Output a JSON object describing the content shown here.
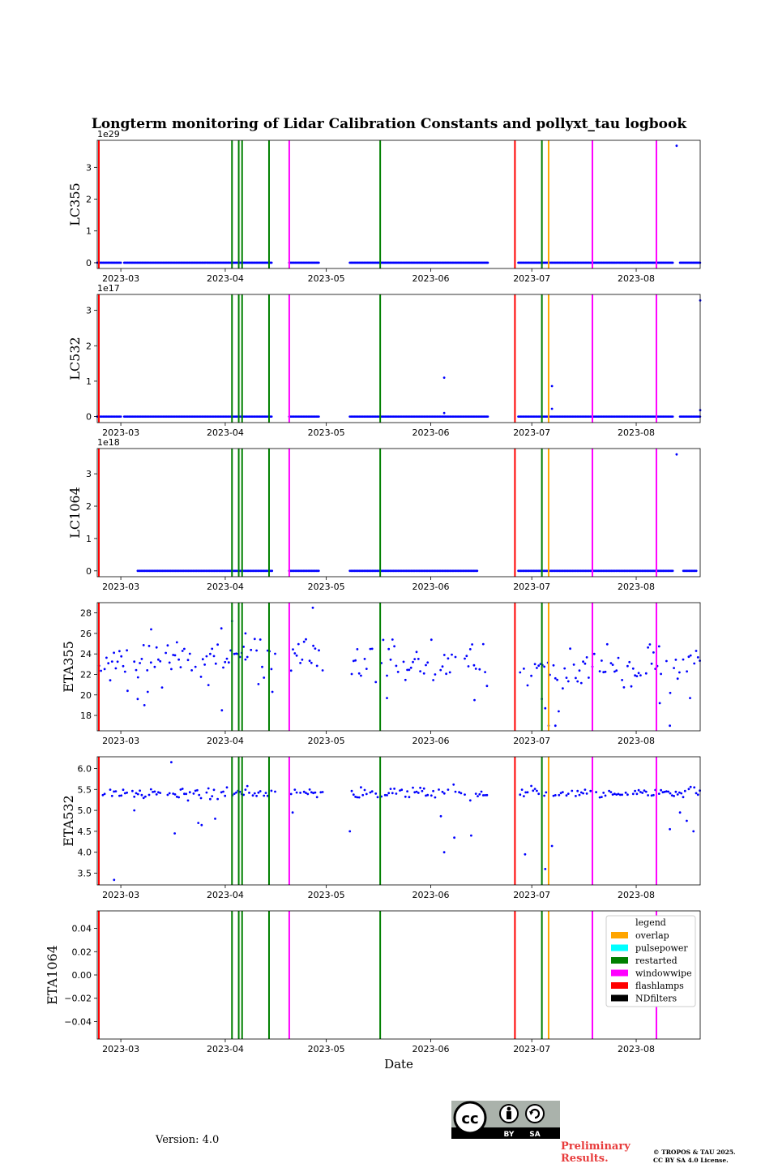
{
  "figure": {
    "title": "Longterm monitoring of Lidar Calibration Constants and pollyxt_tau logbook",
    "xlabel": "Date"
  },
  "chart_data": [
    {
      "type": "scatter",
      "ylabel": "LC355",
      "offset_text": "1e29",
      "yunit_scale": 1e+29,
      "ylim": [
        -0.18,
        3.85
      ],
      "yticks": [
        0,
        1,
        2,
        3
      ],
      "ytick_labels": [
        "0",
        "1",
        "2",
        "3"
      ],
      "xlim": [
        "2023-02-22",
        "2023-08-20"
      ],
      "xtick_labels": [
        "2023-03",
        "2023-04",
        "2023-05",
        "2023-06",
        "2023-07",
        "2023-08"
      ],
      "baseline_ranges": [
        [
          "2023-02-22",
          "2023-03-01"
        ],
        [
          "2023-03-02",
          "2023-04-15"
        ],
        [
          "2023-04-20",
          "2023-04-29"
        ],
        [
          "2023-05-08",
          "2023-06-18"
        ],
        [
          "2023-06-27",
          "2023-08-12"
        ],
        [
          "2023-08-14",
          "2023-08-20"
        ]
      ],
      "baseline_value": 0,
      "points": [
        [
          "2023-08-13",
          3.68
        ]
      ]
    },
    {
      "type": "scatter",
      "ylabel": "LC532",
      "offset_text": "1e17",
      "yunit_scale": 1e+17,
      "ylim": [
        -0.17,
        3.45
      ],
      "yticks": [
        0,
        1,
        2,
        3
      ],
      "ytick_labels": [
        "0",
        "1",
        "2",
        "3"
      ],
      "xlim": [
        "2023-02-22",
        "2023-08-20"
      ],
      "xtick_labels": [
        "2023-03",
        "2023-04",
        "2023-05",
        "2023-06",
        "2023-07",
        "2023-08"
      ],
      "baseline_ranges": [
        [
          "2023-02-22",
          "2023-03-01"
        ],
        [
          "2023-03-02",
          "2023-04-15"
        ],
        [
          "2023-04-20",
          "2023-04-29"
        ],
        [
          "2023-05-08",
          "2023-06-18"
        ],
        [
          "2023-06-27",
          "2023-08-12"
        ],
        [
          "2023-08-14",
          "2023-08-20"
        ]
      ],
      "baseline_value": 0,
      "points": [
        [
          "2023-06-05",
          1.1
        ],
        [
          "2023-07-07",
          0.86
        ],
        [
          "2023-07-07",
          0.22
        ],
        [
          "2023-08-20",
          3.28
        ],
        [
          "2023-08-20",
          0.18
        ],
        [
          "2023-06-05",
          0.1
        ]
      ]
    },
    {
      "type": "scatter",
      "ylabel": "LC1064",
      "offset_text": "1e18",
      "yunit_scale": 1e+18,
      "ylim": [
        -0.18,
        3.78
      ],
      "yticks": [
        0,
        1,
        2,
        3
      ],
      "ytick_labels": [
        "0",
        "1",
        "2",
        "3"
      ],
      "xlim": [
        "2023-02-22",
        "2023-08-20"
      ],
      "xtick_labels": [
        "2023-03",
        "2023-04",
        "2023-05",
        "2023-06",
        "2023-07",
        "2023-08"
      ],
      "baseline_ranges": [
        [
          "2023-03-06",
          "2023-04-15"
        ],
        [
          "2023-04-20",
          "2023-04-29"
        ],
        [
          "2023-05-08",
          "2023-06-15"
        ],
        [
          "2023-06-27",
          "2023-08-12"
        ],
        [
          "2023-08-15",
          "2023-08-19"
        ]
      ],
      "baseline_value": 0,
      "points": [
        [
          "2023-08-13",
          3.6
        ]
      ]
    },
    {
      "type": "scatter",
      "ylabel": "ETA355",
      "ylim": [
        16.5,
        29.0
      ],
      "yticks": [
        18,
        20,
        22,
        24,
        26,
        28
      ],
      "ytick_labels": [
        "18",
        "20",
        "22",
        "24",
        "26",
        "28"
      ],
      "xlim": [
        "2023-02-22",
        "2023-08-20"
      ],
      "xtick_labels": [
        "2023-03",
        "2023-04",
        "2023-05",
        "2023-06",
        "2023-07",
        "2023-08"
      ],
      "scatter_segments": [
        {
          "start": "2023-02-22",
          "end": "2023-04-16",
          "mean": 23.6,
          "spread": 1.5,
          "seed": 11
        },
        {
          "start": "2023-04-20",
          "end": "2023-04-30",
          "mean": 24.0,
          "spread": 1.2,
          "seed": 12
        },
        {
          "start": "2023-05-08",
          "end": "2023-06-18",
          "mean": 23.1,
          "spread": 1.3,
          "seed": 13
        },
        {
          "start": "2023-06-27",
          "end": "2023-08-20",
          "mean": 22.6,
          "spread": 1.5,
          "seed": 14
        }
      ],
      "outliers": [
        [
          "2023-03-03",
          20.4
        ],
        [
          "2023-03-06",
          19.6
        ],
        [
          "2023-03-08",
          19.0
        ],
        [
          "2023-03-09",
          20.3
        ],
        [
          "2023-03-10",
          26.4
        ],
        [
          "2023-03-31",
          18.5
        ],
        [
          "2023-04-03",
          27.2
        ],
        [
          "2023-04-07",
          26.0
        ],
        [
          "2023-04-15",
          20.3
        ],
        [
          "2023-04-27",
          28.5
        ],
        [
          "2023-05-19",
          19.7
        ],
        [
          "2023-06-14",
          19.5
        ],
        [
          "2023-07-04",
          19.6
        ],
        [
          "2023-07-05",
          18.7
        ],
        [
          "2023-07-06",
          17.0
        ],
        [
          "2023-07-08",
          17.0
        ],
        [
          "2023-07-09",
          18.4
        ],
        [
          "2023-08-08",
          19.2
        ],
        [
          "2023-08-11",
          17.0
        ],
        [
          "2023-08-17",
          19.7
        ]
      ]
    },
    {
      "type": "scatter",
      "ylabel": "ETA532",
      "ylim": [
        3.22,
        6.28
      ],
      "yticks": [
        3.5,
        4.0,
        4.5,
        5.0,
        5.5,
        6.0
      ],
      "ytick_labels": [
        "3.5",
        "4.0",
        "4.5",
        "5.0",
        "5.5",
        "6.0"
      ],
      "xlim": [
        "2023-02-22",
        "2023-08-20"
      ],
      "xtick_labels": [
        "2023-03",
        "2023-04",
        "2023-05",
        "2023-06",
        "2023-07",
        "2023-08"
      ],
      "scatter_segments": [
        {
          "start": "2023-02-22",
          "end": "2023-04-16",
          "mean": 5.42,
          "spread": 0.1,
          "seed": 21
        },
        {
          "start": "2023-04-20",
          "end": "2023-04-30",
          "mean": 5.4,
          "spread": 0.08,
          "seed": 22
        },
        {
          "start": "2023-05-08",
          "end": "2023-06-18",
          "mean": 5.42,
          "spread": 0.1,
          "seed": 23
        },
        {
          "start": "2023-06-27",
          "end": "2023-08-20",
          "mean": 5.42,
          "spread": 0.1,
          "seed": 24
        }
      ],
      "outliers": [
        [
          "2023-02-27",
          3.34
        ],
        [
          "2023-03-05",
          5.0
        ],
        [
          "2023-03-16",
          6.15
        ],
        [
          "2023-03-17",
          4.45
        ],
        [
          "2023-03-24",
          4.7
        ],
        [
          "2023-03-25",
          4.65
        ],
        [
          "2023-03-29",
          4.8
        ],
        [
          "2023-04-21",
          4.95
        ],
        [
          "2023-05-08",
          4.5
        ],
        [
          "2023-06-04",
          4.86
        ],
        [
          "2023-06-05",
          4.0
        ],
        [
          "2023-06-08",
          4.35
        ],
        [
          "2023-06-13",
          4.4
        ],
        [
          "2023-06-29",
          3.95
        ],
        [
          "2023-07-05",
          3.6
        ],
        [
          "2023-07-07",
          4.15
        ],
        [
          "2023-08-11",
          4.55
        ],
        [
          "2023-08-14",
          4.95
        ],
        [
          "2023-08-16",
          4.75
        ],
        [
          "2023-08-18",
          4.5
        ]
      ]
    },
    {
      "type": "scatter",
      "ylabel": "ETA1064",
      "ylim": [
        -0.055,
        0.055
      ],
      "yticks": [
        -0.04,
        -0.02,
        0.0,
        0.02,
        0.04
      ],
      "ytick_labels": [
        "−0.04",
        "−0.02",
        "0.00",
        "0.02",
        "0.04"
      ],
      "xlim": [
        "2023-02-22",
        "2023-08-20"
      ],
      "xtick_labels": [
        "2023-03",
        "2023-04",
        "2023-05",
        "2023-06",
        "2023-07",
        "2023-08"
      ],
      "points": []
    }
  ],
  "logbook_events": [
    {
      "date": "2023-02-22",
      "type": "flashlamps"
    },
    {
      "date": "2023-04-03",
      "type": "restarted"
    },
    {
      "date": "2023-04-05",
      "type": "restarted"
    },
    {
      "date": "2023-04-06",
      "type": "restarted"
    },
    {
      "date": "2023-04-14",
      "type": "restarted"
    },
    {
      "date": "2023-04-20",
      "type": "windowwipe"
    },
    {
      "date": "2023-05-17",
      "type": "restarted"
    },
    {
      "date": "2023-06-26",
      "type": "flashlamps"
    },
    {
      "date": "2023-07-04",
      "type": "restarted"
    },
    {
      "date": "2023-07-06",
      "type": "overlap"
    },
    {
      "date": "2023-07-19",
      "type": "windowwipe"
    },
    {
      "date": "2023-08-07",
      "type": "windowwipe"
    }
  ],
  "legend": {
    "title": "legend",
    "location": "upper right of last panel",
    "entries": [
      {
        "label": "overlap",
        "color": "#ffa500"
      },
      {
        "label": "pulsepower",
        "color": "#00ffff"
      },
      {
        "label": "restarted",
        "color": "#008000"
      },
      {
        "label": "windowwipe",
        "color": "#ff00ff"
      },
      {
        "label": "flashlamps",
        "color": "#ff0000"
      },
      {
        "label": "NDfilters",
        "color": "#000000"
      }
    ]
  },
  "colors": {
    "points": "#0000ff",
    "overlap": "#ffa500",
    "pulsepower": "#00ffff",
    "restarted": "#008000",
    "windowwipe": "#ff00ff",
    "flashlamps": "#ff0000",
    "NDfilters": "#000000"
  },
  "footer": {
    "version": "Version: 4.0",
    "preliminary_line1": "Preliminary",
    "preliminary_line2": "Results.",
    "copyright_line1": "© TROPOS & TAU 2025.",
    "copyright_line2": "CC BY SA 4.0 License.",
    "license_badge": {
      "by": "BY",
      "sa": "SA"
    }
  }
}
